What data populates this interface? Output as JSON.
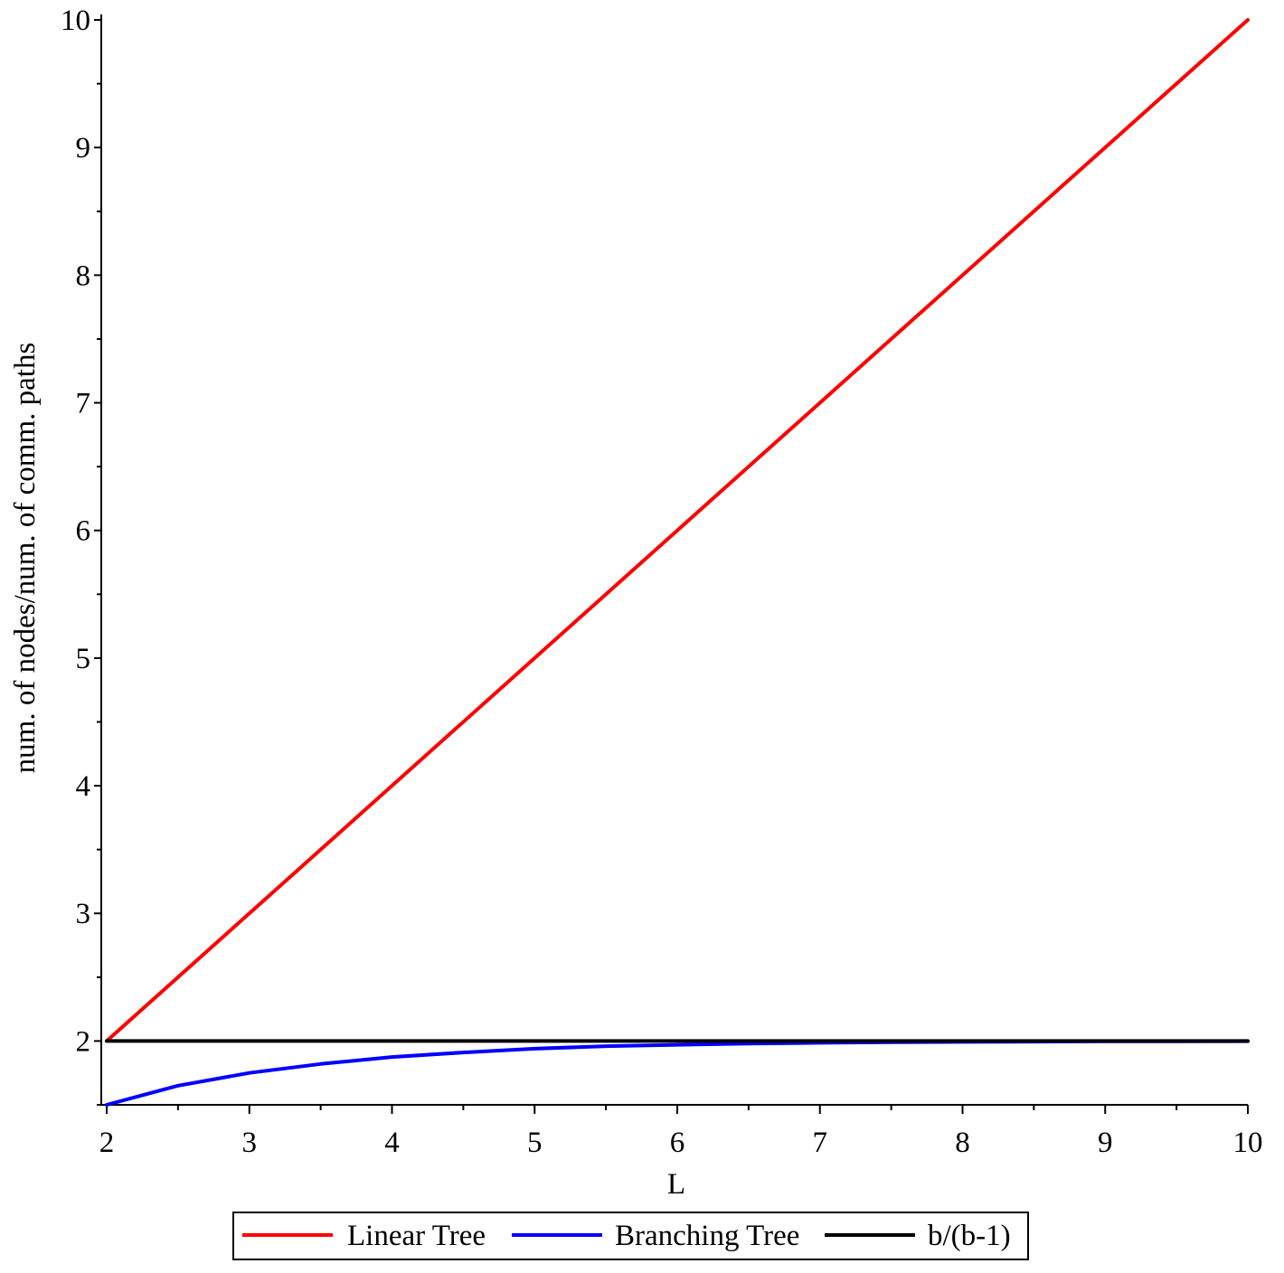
{
  "chart_data": {
    "type": "line",
    "title": "",
    "xlabel": "L",
    "ylabel": "num. of nodes/num. of comm. paths",
    "xlim": [
      2,
      10
    ],
    "ylim": [
      1.5,
      10
    ],
    "x_ticks": [
      "2",
      "3",
      "4",
      "5",
      "6",
      "7",
      "8",
      "9",
      "10"
    ],
    "y_ticks": [
      "2",
      "3",
      "4",
      "5",
      "6",
      "7",
      "8",
      "9",
      "10"
    ],
    "grid": false,
    "legend_position": "bottom",
    "series": [
      {
        "name": "Linear Tree",
        "color": "#ff0000",
        "x": [
          2,
          10
        ],
        "y": [
          2,
          10
        ]
      },
      {
        "name": "Branching Tree",
        "color": "#0000ff",
        "x": [
          2,
          2.5,
          3,
          3.5,
          4,
          4.5,
          5,
          5.5,
          6,
          6.5,
          7,
          7.5,
          8,
          8.5,
          9,
          9.5,
          10
        ],
        "y": [
          1.5,
          1.65,
          1.75,
          1.82,
          1.875,
          1.91,
          1.94,
          1.96,
          1.97,
          1.98,
          1.986,
          1.99,
          1.993,
          1.995,
          1.997,
          1.998,
          1.999
        ]
      },
      {
        "name": "b/(b-1)",
        "color": "#000000",
        "x": [
          2,
          10
        ],
        "y": [
          2,
          2
        ]
      }
    ]
  }
}
